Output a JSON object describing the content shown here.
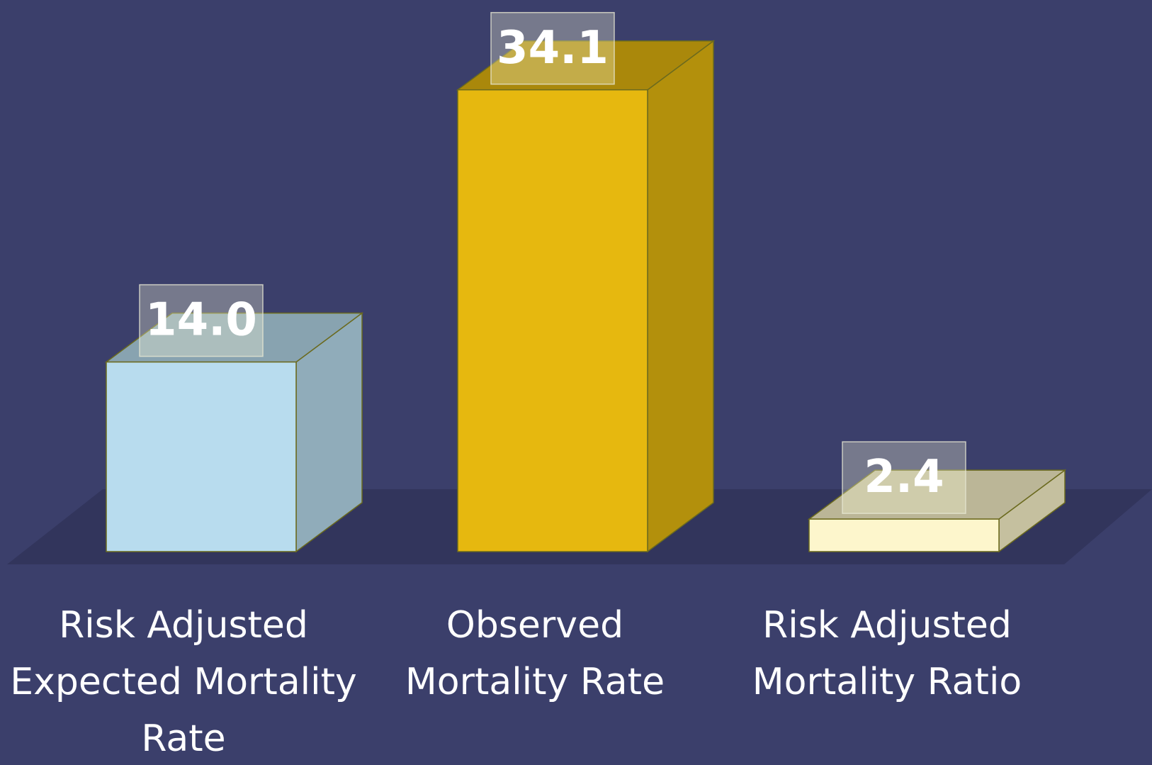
{
  "chart_data": {
    "type": "bar3d",
    "categories": [
      "Risk Adjusted Expected Mortality Rate",
      "Observed Mortality Rate",
      "Risk Adjusted Mortality Ratio"
    ],
    "values": [
      14.0,
      34.1,
      2.4
    ],
    "value_labels": [
      "14.0",
      "34.1",
      "2.4"
    ],
    "colors": [
      "#b8dcee",
      "#e6b80f",
      "#fdf6cc"
    ]
  }
}
